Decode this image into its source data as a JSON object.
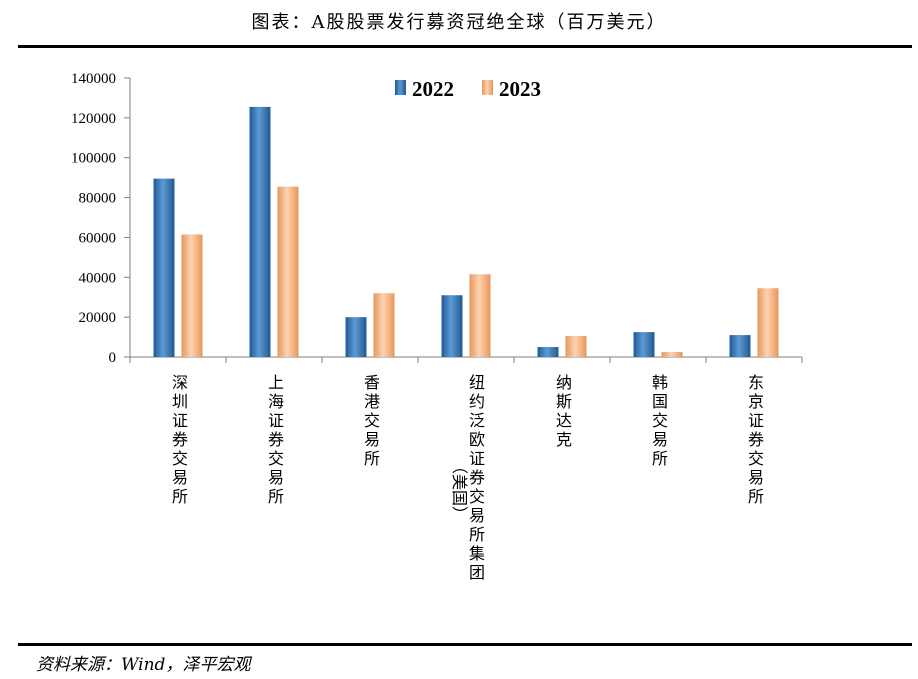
{
  "title": "图表：A股股票发行募资冠绝全球（百万美元）",
  "source": "资料来源：Wind，泽平宏观",
  "chart_data": {
    "type": "bar",
    "categories": [
      [
        "深圳证券交易所"
      ],
      [
        "上海证券交易所"
      ],
      [
        "香港交易所"
      ],
      [
        "纽约泛欧证券交易所集团",
        "（美国）"
      ],
      [
        "纳斯达克"
      ],
      [
        "韩国交易所"
      ],
      [
        "东京证券交易所"
      ]
    ],
    "series": [
      {
        "name": "2022",
        "values": [
          89500,
          125500,
          20000,
          31000,
          5000,
          12500,
          11000
        ]
      },
      {
        "name": "2023",
        "values": [
          61500,
          85500,
          32000,
          41500,
          10500,
          2500,
          34500
        ]
      }
    ],
    "ylim": [
      0,
      140000
    ],
    "yticks": [
      "0",
      "20000",
      "40000",
      "60000",
      "80000",
      "100000",
      "120000",
      "140000"
    ],
    "legend_position": "top",
    "colors": {
      "2022": "#3f82c2",
      "2023": "#f0a068"
    },
    "grid": false
  }
}
